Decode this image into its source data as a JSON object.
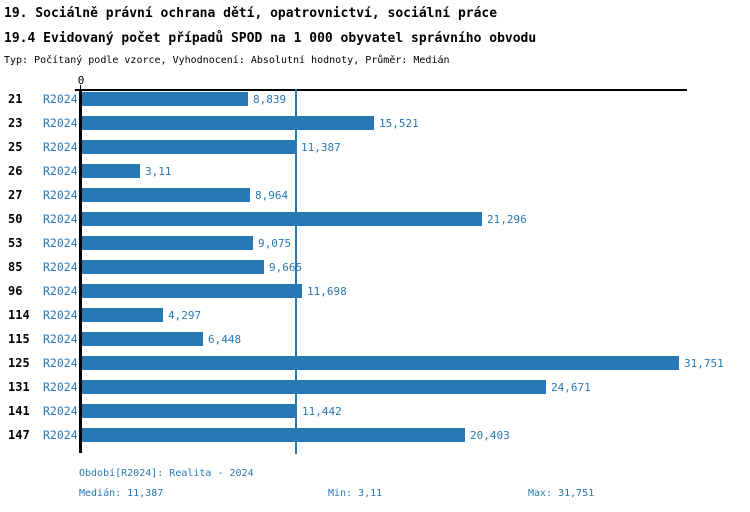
{
  "title": "19. Sociálně právní ochrana dětí, opatrovnictví, sociální práce",
  "subtitle": "19.4 Evidovaný počet případů SPOD na 1 000 obyvatel správního obvodu",
  "meta": "Typ: Počítaný podle vzorce, Vyhodnocení: Absolutní hodnoty, Průměr: Medián",
  "colors": {
    "bar": "#2878b5",
    "text_blue": "#2878b5",
    "axis": "#000000",
    "background": "#ffffff"
  },
  "chart_data": {
    "type": "bar",
    "orientation": "horizontal",
    "title": "19.4 Evidovaný počet případů SPOD na 1 000 obyvatel správního obvodu",
    "series_label": "R2024",
    "axis_zero_label": "0",
    "xlim": [
      0,
      32.2
    ],
    "grid": false,
    "median_line_value": 11.387,
    "categories": [
      "21",
      "23",
      "25",
      "26",
      "27",
      "50",
      "53",
      "85",
      "96",
      "114",
      "115",
      "125",
      "131",
      "141",
      "147"
    ],
    "values": [
      8.839,
      15.521,
      11.387,
      3.11,
      8.964,
      21.296,
      9.075,
      9.665,
      11.698,
      4.297,
      6.448,
      31.751,
      24.671,
      11.442,
      20.403
    ],
    "value_labels": [
      "8,839",
      "15,521",
      "11,387",
      "3,11",
      "8,964",
      "21,296",
      "9,075",
      "9,665",
      "11,698",
      "4,297",
      "6,448",
      "31,751",
      "24,671",
      "11,442",
      "20,403"
    ]
  },
  "footer": {
    "period": "Období[R2024]: Realita - 2024",
    "median": "Medián: 11,387",
    "min": "Min: 3,11",
    "max": "Max: 31,751"
  }
}
